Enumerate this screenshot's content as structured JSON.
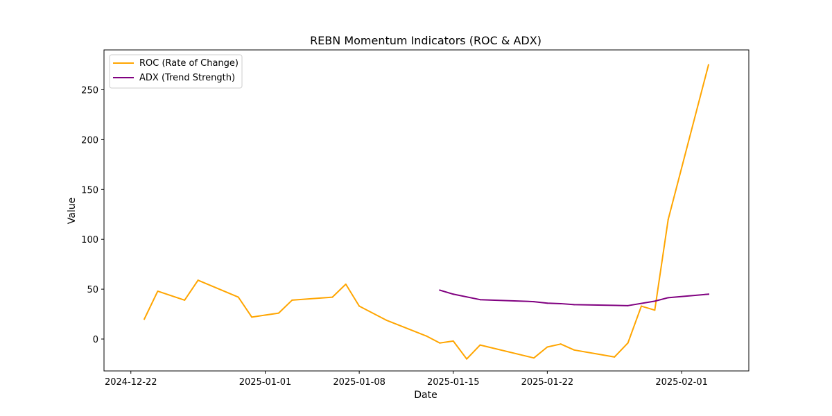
{
  "chart_data": {
    "type": "line",
    "title": "REBN Momentum Indicators (ROC & ADX)",
    "xlabel": "Date",
    "ylabel": "Value",
    "xlim": [
      "2024-12-20",
      "2025-02-06"
    ],
    "ylim": [
      -32,
      290
    ],
    "x_ticks": [
      "2024-12-22",
      "2025-01-01",
      "2025-01-08",
      "2025-01-15",
      "2025-01-22",
      "2025-02-01"
    ],
    "y_ticks": [
      0,
      50,
      100,
      150,
      200,
      250
    ],
    "legend_position": "top-left",
    "grid": false,
    "series": [
      {
        "name": "ROC (Rate of Change)",
        "color": "#FFA500",
        "points": [
          {
            "x": "2024-12-23",
            "y": 20
          },
          {
            "x": "2024-12-24",
            "y": 48
          },
          {
            "x": "2024-12-26",
            "y": 39
          },
          {
            "x": "2024-12-27",
            "y": 59
          },
          {
            "x": "2024-12-30",
            "y": 42
          },
          {
            "x": "2024-12-31",
            "y": 22
          },
          {
            "x": "2025-01-02",
            "y": 26
          },
          {
            "x": "2025-01-03",
            "y": 39
          },
          {
            "x": "2025-01-06",
            "y": 42
          },
          {
            "x": "2025-01-07",
            "y": 55
          },
          {
            "x": "2025-01-08",
            "y": 33
          },
          {
            "x": "2025-01-10",
            "y": 19
          },
          {
            "x": "2025-01-13",
            "y": 3
          },
          {
            "x": "2025-01-14",
            "y": -4
          },
          {
            "x": "2025-01-15",
            "y": -2
          },
          {
            "x": "2025-01-16",
            "y": -20
          },
          {
            "x": "2025-01-17",
            "y": -6
          },
          {
            "x": "2025-01-21",
            "y": -19
          },
          {
            "x": "2025-01-22",
            "y": -8
          },
          {
            "x": "2025-01-23",
            "y": -5
          },
          {
            "x": "2025-01-24",
            "y": -11
          },
          {
            "x": "2025-01-27",
            "y": -18
          },
          {
            "x": "2025-01-28",
            "y": -4
          },
          {
            "x": "2025-01-29",
            "y": 33
          },
          {
            "x": "2025-01-30",
            "y": 29
          },
          {
            "x": "2025-01-31",
            "y": 120
          },
          {
            "x": "2025-02-03",
            "y": 275
          }
        ]
      },
      {
        "name": "ADX (Trend Strength)",
        "color": "#800080",
        "points": [
          {
            "x": "2025-01-14",
            "y": 49
          },
          {
            "x": "2025-01-15",
            "y": 45
          },
          {
            "x": "2025-01-17",
            "y": 39.5
          },
          {
            "x": "2025-01-21",
            "y": 37.5
          },
          {
            "x": "2025-01-22",
            "y": 36
          },
          {
            "x": "2025-01-23",
            "y": 35.5
          },
          {
            "x": "2025-01-24",
            "y": 34.5
          },
          {
            "x": "2025-01-28",
            "y": 33.5
          },
          {
            "x": "2025-01-30",
            "y": 38
          },
          {
            "x": "2025-01-31",
            "y": 41.5
          },
          {
            "x": "2025-02-03",
            "y": 45
          }
        ]
      }
    ]
  }
}
